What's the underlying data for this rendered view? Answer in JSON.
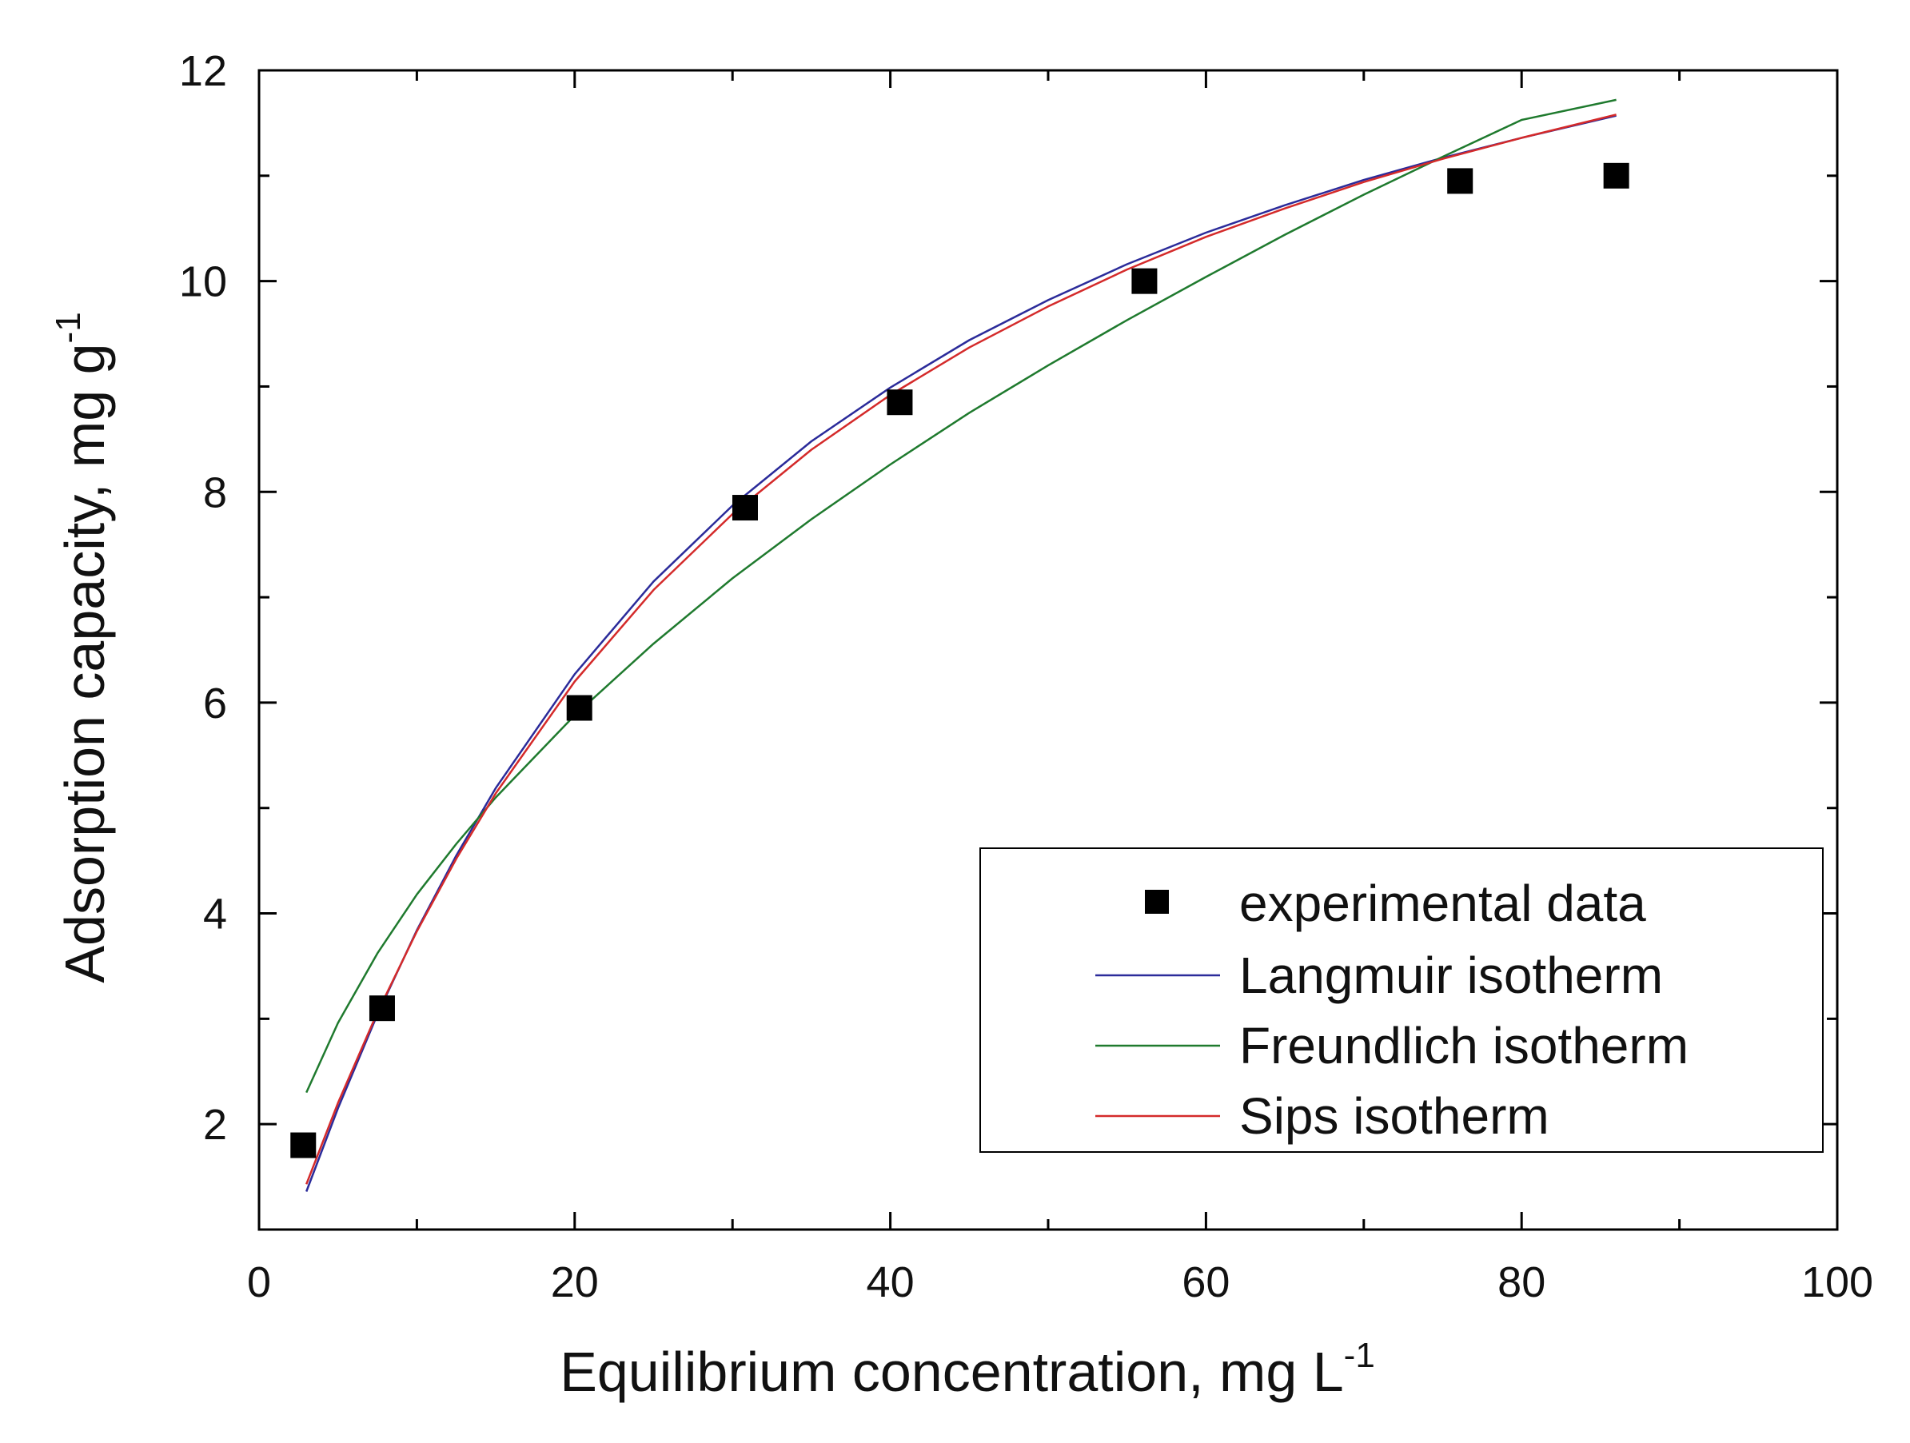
{
  "chart_data": {
    "type": "scatter",
    "xlabel": "Equilibrium concentration, mg L",
    "xlabel_sup": "-1",
    "ylabel": "Adsorption capacity, mg g",
    "ylabel_sup": "-1",
    "xlim": [
      0,
      100
    ],
    "ylim": [
      1,
      12
    ],
    "xticks": [
      "0",
      "20",
      "40",
      "60",
      "80",
      "100"
    ],
    "yticks": [
      "2",
      "4",
      "6",
      "8",
      "10",
      "12"
    ],
    "grid": false,
    "legend_position": "lower-right",
    "series": [
      {
        "name": "experimental data",
        "kind": "marker",
        "color": "#000000",
        "x": [
          2.8,
          7.8,
          20.3,
          30.8,
          40.6,
          56.1,
          76.1,
          86.0
        ],
        "y": [
          1.8,
          3.1,
          5.95,
          7.85,
          8.85,
          10.0,
          10.95,
          11.0
        ]
      },
      {
        "name": "Langmuir isotherm",
        "kind": "line",
        "color": "#2b2b9a",
        "x": [
          3,
          5,
          7.5,
          10,
          12.5,
          15,
          20,
          25,
          30,
          35,
          40,
          45,
          50,
          55,
          60,
          65,
          70,
          75,
          80,
          86
        ],
        "y": [
          1.36,
          2.15,
          3.04,
          3.84,
          4.55,
          5.19,
          6.27,
          7.15,
          7.87,
          8.48,
          8.99,
          9.44,
          9.82,
          10.16,
          10.46,
          10.72,
          10.96,
          11.17,
          11.36,
          11.57
        ]
      },
      {
        "name": "Freundlich isotherm",
        "kind": "line",
        "color": "#1f7a2e",
        "x": [
          3,
          5,
          7.5,
          10,
          12.5,
          15,
          20,
          25,
          30,
          35,
          40,
          45,
          50,
          55,
          60,
          65,
          70,
          75,
          80,
          86
        ],
        "y": [
          2.3,
          2.96,
          3.62,
          4.18,
          4.66,
          5.1,
          5.88,
          6.56,
          7.18,
          7.74,
          8.26,
          8.75,
          9.2,
          9.63,
          10.04,
          10.44,
          10.82,
          11.18,
          11.53,
          11.72
        ]
      },
      {
        "name": "Sips isotherm",
        "kind": "line",
        "color": "#d42a2a",
        "x": [
          3,
          5,
          7.5,
          10,
          12.5,
          15,
          20,
          25,
          30,
          35,
          40,
          45,
          50,
          55,
          60,
          65,
          70,
          75,
          80,
          86
        ],
        "y": [
          1.43,
          2.2,
          3.06,
          3.83,
          4.52,
          5.14,
          6.2,
          7.07,
          7.79,
          8.4,
          8.92,
          9.37,
          9.76,
          10.11,
          10.42,
          10.69,
          10.94,
          11.16,
          11.36,
          11.58
        ]
      }
    ]
  }
}
